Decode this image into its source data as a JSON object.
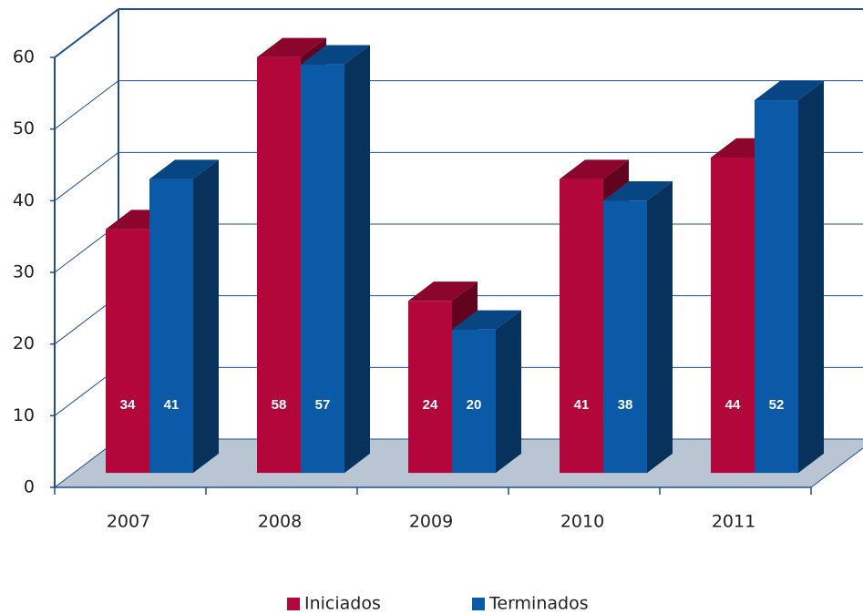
{
  "chart_data": {
    "type": "bar3d",
    "categories": [
      "2007",
      "2008",
      "2009",
      "2010",
      "2011"
    ],
    "series": [
      {
        "name": "Iniciados",
        "color": "#b3063a",
        "values": [
          34,
          58,
          24,
          41,
          44
        ]
      },
      {
        "name": "Terminados",
        "color": "#0a5aa8",
        "values": [
          41,
          57,
          20,
          38,
          52
        ]
      }
    ],
    "ylim": [
      0,
      60
    ],
    "yticks": [
      0,
      10,
      20,
      30,
      40,
      50,
      60
    ],
    "grid": true,
    "legend": "bottom"
  }
}
